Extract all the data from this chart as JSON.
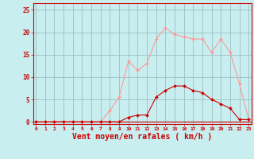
{
  "x": [
    0,
    1,
    2,
    3,
    4,
    5,
    6,
    7,
    8,
    9,
    10,
    11,
    12,
    13,
    14,
    15,
    16,
    17,
    18,
    19,
    20,
    21,
    22,
    23
  ],
  "y_rafales": [
    0,
    0,
    0,
    0,
    0,
    0,
    0,
    0,
    2.5,
    5.5,
    13.5,
    11.5,
    13,
    18.5,
    21,
    19.5,
    19,
    18.5,
    18.5,
    15.5,
    18.5,
    15.5,
    8.5,
    0.5
  ],
  "y_moyen": [
    0,
    0,
    0,
    0,
    0,
    0,
    0,
    0,
    0,
    0,
    1,
    1.5,
    1.5,
    5.5,
    7,
    8,
    8,
    7,
    6.5,
    5,
    4,
    3,
    0.5,
    0.5
  ],
  "line_color_rafales": "#FF9999",
  "line_color_moyen": "#CC0000",
  "bg_color": "#C8EEF0",
  "grid_color": "#9BBFC2",
  "xlabel": "Vent moyen/en rafales ( km/h )",
  "xlabel_color": "#CC0000",
  "tick_color": "#CC0000",
  "ylabel_ticks": [
    0,
    5,
    10,
    15,
    20,
    25
  ],
  "xlim": [
    -0.3,
    23.3
  ],
  "ylim": [
    -0.5,
    26.5
  ]
}
